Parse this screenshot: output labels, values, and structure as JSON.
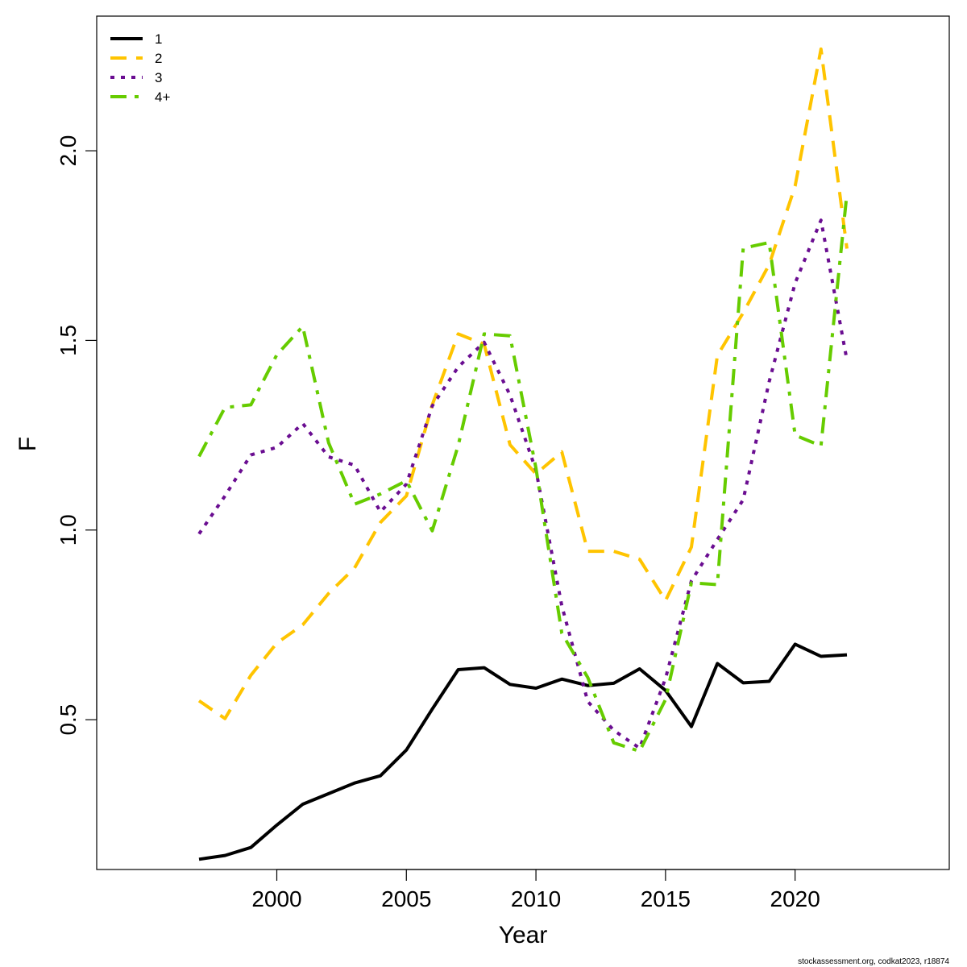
{
  "chart_data": {
    "type": "line",
    "xlabel": "Year",
    "ylabel": "F",
    "x": [
      1997,
      1998,
      1999,
      2000,
      2001,
      2002,
      2003,
      2004,
      2005,
      2006,
      2007,
      2008,
      2009,
      2010,
      2011,
      2012,
      2013,
      2014,
      2015,
      2016,
      2017,
      2018,
      2019,
      2020,
      2021,
      2022
    ],
    "xlim": [
      1993.05,
      2025.95
    ],
    "ylim": [
      0.105,
      2.355
    ],
    "x_ticks": [
      2000,
      2005,
      2010,
      2015,
      2020
    ],
    "x_tick_labels": [
      "2000",
      "2005",
      "2010",
      "2015",
      "2020"
    ],
    "y_ticks": [
      0.5,
      1.0,
      1.5,
      2.0
    ],
    "y_tick_labels": [
      "0.5",
      "1.0",
      "1.5",
      "2.0"
    ],
    "grid": false,
    "legend_position": "top-left",
    "series": [
      {
        "name": "1",
        "color": "#000000",
        "line_style": "solid",
        "values": [
          0.132,
          0.142,
          0.163,
          0.222,
          0.277,
          0.305,
          0.333,
          0.352,
          0.42,
          0.528,
          0.632,
          0.637,
          0.593,
          0.583,
          0.607,
          0.59,
          0.596,
          0.634,
          0.577,
          0.482,
          0.648,
          0.597,
          0.601,
          0.699,
          0.667,
          0.671
        ]
      },
      {
        "name": "2",
        "color": "#FFC400",
        "line_style": "dashed",
        "values": [
          0.55,
          0.503,
          0.617,
          0.702,
          0.75,
          0.833,
          0.9,
          1.02,
          1.09,
          1.33,
          1.517,
          1.49,
          1.225,
          1.148,
          1.206,
          0.944,
          0.944,
          0.923,
          0.814,
          0.955,
          1.46,
          1.573,
          1.7,
          1.907,
          2.268,
          1.742
        ]
      },
      {
        "name": "3",
        "color": "#6A0D91",
        "line_style": "dotted",
        "values": [
          0.99,
          1.09,
          1.198,
          1.218,
          1.281,
          1.193,
          1.171,
          1.048,
          1.121,
          1.327,
          1.43,
          1.495,
          1.356,
          1.158,
          0.8,
          0.548,
          0.472,
          0.425,
          0.609,
          0.866,
          0.975,
          1.08,
          1.391,
          1.651,
          1.817,
          1.448
        ]
      },
      {
        "name": "4+",
        "color": "#66CC00",
        "line_style": "dashdot",
        "values": [
          1.194,
          1.323,
          1.33,
          1.462,
          1.537,
          1.23,
          1.068,
          1.095,
          1.13,
          0.998,
          1.223,
          1.517,
          1.512,
          1.163,
          0.728,
          0.611,
          0.439,
          0.417,
          0.553,
          0.861,
          0.856,
          1.743,
          1.758,
          1.25,
          1.222,
          1.888
        ]
      }
    ]
  },
  "credit": "stockassessment.org, codkat2023, r18874"
}
